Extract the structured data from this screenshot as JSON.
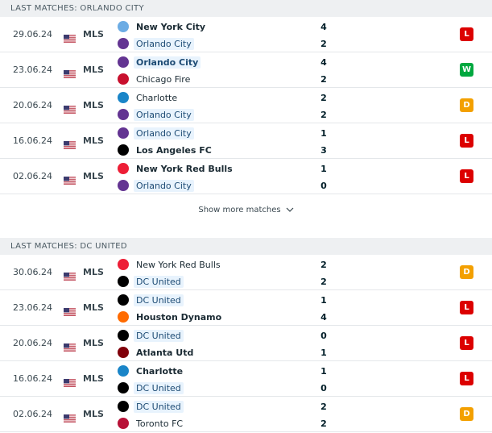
{
  "section1": {
    "title": "LAST MATCHES: ORLANDO CITY",
    "matches": [
      {
        "date": "29.06.24",
        "league": "MLS",
        "home": {
          "name": "New York City",
          "crest": "nycfc",
          "bold": true,
          "focus": false
        },
        "away": {
          "name": "Orlando City",
          "crest": "orlando",
          "bold": false,
          "focus": true
        },
        "home_score": "4",
        "away_score": "2",
        "result": "L"
      },
      {
        "date": "23.06.24",
        "league": "MLS",
        "home": {
          "name": "Orlando City",
          "crest": "orlando",
          "bold": true,
          "focus": true
        },
        "away": {
          "name": "Chicago Fire",
          "crest": "chicago",
          "bold": false,
          "focus": false
        },
        "home_score": "4",
        "away_score": "2",
        "result": "W"
      },
      {
        "date": "20.06.24",
        "league": "MLS",
        "home": {
          "name": "Charlotte",
          "crest": "charlotte",
          "bold": false,
          "focus": false
        },
        "away": {
          "name": "Orlando City",
          "crest": "orlando",
          "bold": false,
          "focus": true
        },
        "home_score": "2",
        "away_score": "2",
        "result": "D"
      },
      {
        "date": "16.06.24",
        "league": "MLS",
        "home": {
          "name": "Orlando City",
          "crest": "orlando",
          "bold": false,
          "focus": true
        },
        "away": {
          "name": "Los Angeles FC",
          "crest": "lafc",
          "bold": true,
          "focus": false
        },
        "home_score": "1",
        "away_score": "3",
        "result": "L"
      },
      {
        "date": "02.06.24",
        "league": "MLS",
        "home": {
          "name": "New York Red Bulls",
          "crest": "redbulls",
          "bold": true,
          "focus": false
        },
        "away": {
          "name": "Orlando City",
          "crest": "orlando",
          "bold": false,
          "focus": true
        },
        "home_score": "1",
        "away_score": "0",
        "result": "L"
      }
    ],
    "show_more": "Show more matches"
  },
  "section2": {
    "title": "LAST MATCHES: DC UNITED",
    "matches": [
      {
        "date": "30.06.24",
        "league": "MLS",
        "home": {
          "name": "New York Red Bulls",
          "crest": "redbulls",
          "bold": false,
          "focus": false
        },
        "away": {
          "name": "DC United",
          "crest": "dcunited",
          "bold": false,
          "focus": true
        },
        "home_score": "2",
        "away_score": "2",
        "result": "D"
      },
      {
        "date": "23.06.24",
        "league": "MLS",
        "home": {
          "name": "DC United",
          "crest": "dcunited",
          "bold": false,
          "focus": true
        },
        "away": {
          "name": "Houston Dynamo",
          "crest": "houston",
          "bold": true,
          "focus": false
        },
        "home_score": "1",
        "away_score": "4",
        "result": "L"
      },
      {
        "date": "20.06.24",
        "league": "MLS",
        "home": {
          "name": "DC United",
          "crest": "dcunited",
          "bold": false,
          "focus": true
        },
        "away": {
          "name": "Atlanta Utd",
          "crest": "atlanta",
          "bold": true,
          "focus": false
        },
        "home_score": "0",
        "away_score": "1",
        "result": "L"
      },
      {
        "date": "16.06.24",
        "league": "MLS",
        "home": {
          "name": "Charlotte",
          "crest": "charlotte",
          "bold": true,
          "focus": false
        },
        "away": {
          "name": "DC United",
          "crest": "dcunited",
          "bold": false,
          "focus": true
        },
        "home_score": "1",
        "away_score": "0",
        "result": "L"
      },
      {
        "date": "02.06.24",
        "league": "MLS",
        "home": {
          "name": "DC United",
          "crest": "dcunited",
          "bold": false,
          "focus": true
        },
        "away": {
          "name": "Toronto FC",
          "crest": "toronto",
          "bold": false,
          "focus": false
        },
        "home_score": "2",
        "away_score": "2",
        "result": "D"
      }
    ]
  },
  "result_colors": {
    "W": "#00a83f",
    "L": "#dc0000",
    "D": "#f3a000"
  },
  "crest_colors": {
    "nycfc": "#6cace4",
    "orlando": "#633492",
    "chicago": "#c8102e",
    "charlotte": "#1a85c8",
    "lafc": "#000000",
    "redbulls": "#ed1e36",
    "dcunited": "#000000",
    "houston": "#ff6b00",
    "atlanta": "#80000a",
    "toronto": "#b81137"
  }
}
